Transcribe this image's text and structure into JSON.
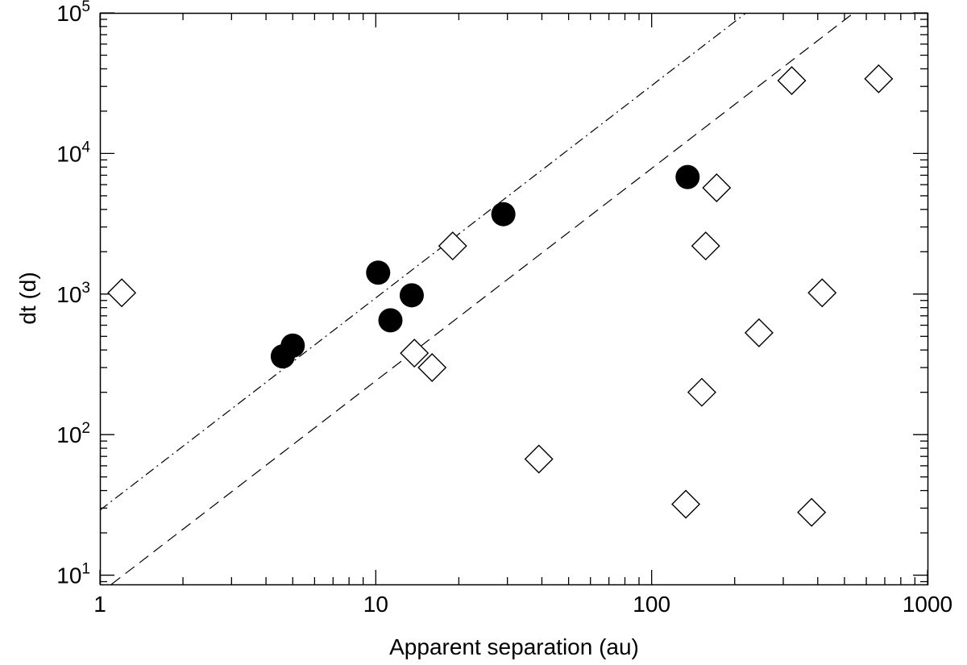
{
  "chart_data": {
    "type": "scatter",
    "title": "",
    "xlabel": "Apparent separation (au)",
    "ylabel": "dt (d)",
    "xscale": "log",
    "yscale": "log",
    "xlim": [
      1,
      1000
    ],
    "ylim": [
      8.6,
      100000
    ],
    "grid": false,
    "legend": "none",
    "x_ticks": [
      {
        "value": 1,
        "label": "1"
      },
      {
        "value": 10,
        "label": "10"
      },
      {
        "value": 100,
        "label": "100"
      },
      {
        "value": 1000,
        "label": "1000"
      }
    ],
    "y_ticks": [
      {
        "value": 10,
        "base": "10",
        "exp": "1"
      },
      {
        "value": 100,
        "base": "10",
        "exp": "2"
      },
      {
        "value": 1000,
        "base": "10",
        "exp": "3"
      },
      {
        "value": 10000,
        "base": "10",
        "exp": "4"
      },
      {
        "value": 100000,
        "base": "10",
        "exp": "5"
      }
    ],
    "series": [
      {
        "marker": "filled-circle",
        "color": "#000000",
        "points": [
          {
            "x": 4.6,
            "y": 360
          },
          {
            "x": 5.0,
            "y": 430
          },
          {
            "x": 10.2,
            "y": 1420
          },
          {
            "x": 11.3,
            "y": 650
          },
          {
            "x": 13.5,
            "y": 980
          },
          {
            "x": 29,
            "y": 3700
          },
          {
            "x": 135,
            "y": 6800
          }
        ]
      },
      {
        "marker": "open-diamond",
        "color": "#000000",
        "points": [
          {
            "x": 1.2,
            "y": 1020
          },
          {
            "x": 13.8,
            "y": 380
          },
          {
            "x": 16,
            "y": 300
          },
          {
            "x": 19,
            "y": 2200
          },
          {
            "x": 39,
            "y": 67
          },
          {
            "x": 133,
            "y": 32
          },
          {
            "x": 152,
            "y": 200
          },
          {
            "x": 157,
            "y": 2200
          },
          {
            "x": 172,
            "y": 5700
          },
          {
            "x": 245,
            "y": 530
          },
          {
            "x": 322,
            "y": 33000
          },
          {
            "x": 380,
            "y": 28
          },
          {
            "x": 415,
            "y": 1020
          },
          {
            "x": 665,
            "y": 34000
          }
        ]
      }
    ],
    "reference_lines": [
      {
        "style": "dash-dot",
        "x": [
          1,
          220
        ],
        "y": [
          29,
          100000
        ]
      },
      {
        "style": "dashed",
        "x": [
          1.1,
          540
        ],
        "y": [
          8.6,
          100000
        ]
      }
    ]
  }
}
